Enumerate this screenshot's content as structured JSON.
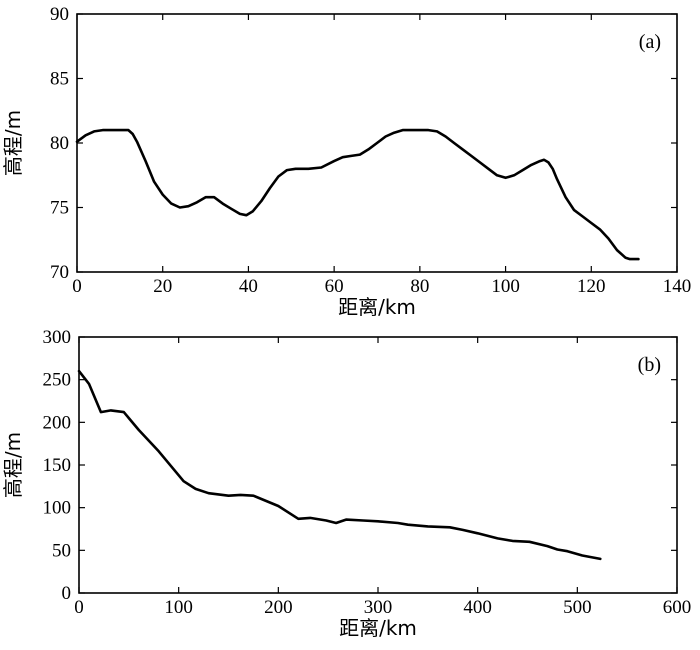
{
  "chart_data": [
    {
      "type": "line",
      "panel_label": "(a)",
      "xlabel": "距离/km",
      "ylabel": "高程/m",
      "xlim": [
        0,
        140
      ],
      "ylim": [
        70,
        90
      ],
      "xticks": [
        0,
        20,
        40,
        60,
        80,
        100,
        120,
        140
      ],
      "yticks": [
        70,
        75,
        80,
        85,
        90
      ],
      "grid": false,
      "series": [
        {
          "x": [
            0,
            2,
            4,
            6,
            8,
            10,
            12,
            13,
            14,
            16,
            18,
            20,
            22,
            24,
            26,
            28,
            30,
            32,
            34,
            36,
            38,
            39.5,
            41,
            43,
            45,
            47,
            49,
            51,
            54,
            57,
            60,
            62,
            64,
            66,
            68,
            70,
            72,
            74,
            76,
            78,
            80,
            82,
            84,
            86,
            88,
            90,
            92,
            94,
            96,
            98,
            100,
            102,
            104,
            106,
            108,
            109,
            110,
            111,
            112,
            114,
            116,
            118,
            120,
            122,
            124,
            126,
            128,
            129,
            131
          ],
          "y": [
            80.1,
            80.6,
            80.9,
            81.0,
            81.0,
            81.0,
            81.0,
            80.7,
            80.1,
            78.6,
            77.0,
            76.0,
            75.3,
            75.0,
            75.1,
            75.4,
            75.8,
            75.8,
            75.3,
            74.9,
            74.5,
            74.4,
            74.7,
            75.5,
            76.5,
            77.4,
            77.9,
            78.0,
            78.0,
            78.1,
            78.6,
            78.9,
            79.0,
            79.1,
            79.5,
            80.0,
            80.5,
            80.8,
            81.0,
            81.0,
            81.0,
            81.0,
            80.9,
            80.5,
            80.0,
            79.5,
            79.0,
            78.5,
            78.0,
            77.5,
            77.3,
            77.5,
            77.9,
            78.3,
            78.6,
            78.7,
            78.5,
            78.0,
            77.2,
            75.8,
            74.8,
            74.3,
            73.8,
            73.3,
            72.6,
            71.7,
            71.1,
            71.0,
            71.0
          ]
        }
      ]
    },
    {
      "type": "line",
      "panel_label": "(b)",
      "xlabel": "距离/km",
      "ylabel": "高程/m",
      "xlim": [
        0,
        600
      ],
      "ylim": [
        0,
        300
      ],
      "xticks": [
        0,
        100,
        200,
        300,
        400,
        500,
        600
      ],
      "yticks": [
        0,
        50,
        100,
        150,
        200,
        250,
        300
      ],
      "grid": false,
      "series": [
        {
          "x": [
            0,
            10,
            22,
            32,
            45,
            60,
            80,
            95,
            105,
            117,
            130,
            150,
            162,
            175,
            200,
            220,
            232,
            248,
            258,
            268,
            285,
            300,
            320,
            330,
            350,
            372,
            385,
            400,
            420,
            435,
            452,
            470,
            480,
            490,
            505,
            523
          ],
          "y": [
            260,
            245,
            212,
            214,
            212,
            191,
            166,
            145,
            131,
            122,
            117,
            114,
            115,
            114,
            102,
            87,
            88,
            85,
            82,
            86,
            85,
            84,
            82,
            80,
            78,
            77,
            74,
            70,
            64,
            61,
            60,
            55,
            51,
            49,
            44,
            40
          ]
        }
      ]
    }
  ]
}
